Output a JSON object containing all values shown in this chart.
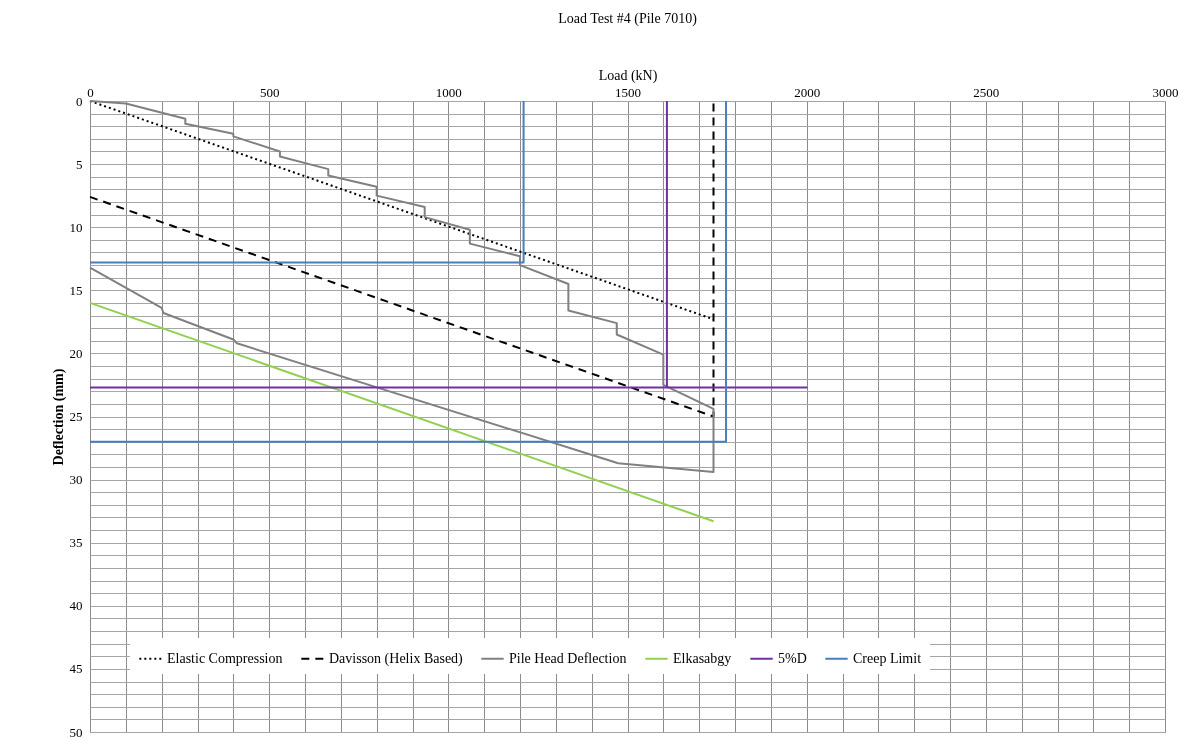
{
  "chart_data": {
    "type": "line",
    "title": "Load Test #4 (Pile 7010)",
    "xlabel": "Load (kN)",
    "ylabel": "Deflection (mm)",
    "xlim": [
      0,
      3000
    ],
    "ylim": [
      50,
      0
    ],
    "xticks": [
      0,
      {
        "value": 100,
        "label": null
      },
      {
        "value": 200,
        "label": null
      },
      {
        "value": 300,
        "label": null
      },
      {
        "value": 400,
        "label": null
      },
      500,
      {
        "value": 600,
        "label": null
      },
      {
        "value": 700,
        "label": null
      },
      {
        "value": 800,
        "label": null
      },
      {
        "value": 900,
        "label": null
      },
      1000,
      {
        "value": 1100,
        "label": null
      },
      {
        "value": 1200,
        "label": null
      },
      {
        "value": 1300,
        "label": null
      },
      {
        "value": 1400,
        "label": null
      },
      1500,
      {
        "value": 1600,
        "label": null
      },
      {
        "value": 1700,
        "label": null
      },
      {
        "value": 1800,
        "label": null
      },
      {
        "value": 1900,
        "label": null
      },
      2000,
      {
        "value": 2100,
        "label": null
      },
      {
        "value": 2200,
        "label": null
      },
      {
        "value": 2300,
        "label": null
      },
      {
        "value": 2400,
        "label": null
      },
      2500,
      {
        "value": 2600,
        "label": null
      },
      {
        "value": 2700,
        "label": null
      },
      {
        "value": 2800,
        "label": null
      },
      {
        "value": 2900,
        "label": null
      },
      3000
    ],
    "yticks": [
      0,
      {
        "value": 1,
        "label": null
      },
      {
        "value": 2,
        "label": null
      },
      {
        "value": 3,
        "label": null
      },
      {
        "value": 4,
        "label": null
      },
      5,
      {
        "value": 6,
        "label": null
      },
      {
        "value": 7,
        "label": null
      },
      {
        "value": 8,
        "label": null
      },
      {
        "value": 9,
        "label": null
      },
      10,
      {
        "value": 11,
        "label": null
      },
      {
        "value": 12,
        "label": null
      },
      {
        "value": 13,
        "label": null
      },
      {
        "value": 14,
        "label": null
      },
      15,
      {
        "value": 16,
        "label": null
      },
      {
        "value": 17,
        "label": null
      },
      {
        "value": 18,
        "label": null
      },
      {
        "value": 19,
        "label": null
      },
      20,
      {
        "value": 21,
        "label": null
      },
      {
        "value": 22,
        "label": null
      },
      {
        "value": 23,
        "label": null
      },
      {
        "value": 24,
        "label": null
      },
      25,
      {
        "value": 26,
        "label": null
      },
      {
        "value": 27,
        "label": null
      },
      {
        "value": 28,
        "label": null
      },
      {
        "value": 29,
        "label": null
      },
      30,
      {
        "value": 31,
        "label": null
      },
      {
        "value": 32,
        "label": null
      },
      {
        "value": 33,
        "label": null
      },
      {
        "value": 34,
        "label": null
      },
      35,
      {
        "value": 36,
        "label": null
      },
      {
        "value": 37,
        "label": null
      },
      {
        "value": 38,
        "label": null
      },
      {
        "value": 39,
        "label": null
      },
      40,
      {
        "value": 41,
        "label": null
      },
      {
        "value": 42,
        "label": null
      },
      {
        "value": 43,
        "label": null
      },
      {
        "value": 44,
        "label": null
      },
      45,
      {
        "value": 46,
        "label": null
      },
      {
        "value": 47,
        "label": null
      },
      {
        "value": 48,
        "label": null
      },
      {
        "value": 49,
        "label": null
      },
      50
    ],
    "grid": true,
    "legend": "bottom",
    "series": [
      {
        "name": "Elastic Compression",
        "color": "#000000",
        "line_style": "dotted",
        "x": [
          0,
          1740
        ],
        "values": [
          0,
          17.3
        ]
      },
      {
        "name": "Davisson (Helix Based)",
        "color": "#000000",
        "line_style": "dashed",
        "x": [
          0,
          1740,
          1740
        ],
        "values": [
          7.6,
          25.0,
          0
        ]
      },
      {
        "name": "Pile Head Deflection",
        "color": "#808080",
        "line_style": "solid",
        "x": [
          0,
          100,
          266,
          266,
          400,
          400,
          530,
          530,
          665,
          665,
          800,
          800,
          934,
          934,
          1060,
          1060,
          1200,
          1200,
          1335,
          1335,
          1470,
          1470,
          1600,
          1600,
          1740,
          1740,
          1474,
          410,
          400,
          205,
          200,
          0
        ],
        "values": [
          0,
          0.2,
          1.4,
          1.8,
          2.6,
          2.8,
          4.0,
          4.4,
          5.4,
          5.9,
          6.8,
          7.5,
          8.4,
          9.2,
          10.2,
          11.3,
          12.3,
          13.0,
          14.5,
          16.6,
          17.6,
          18.5,
          20.1,
          22.5,
          24.4,
          29.4,
          28.7,
          19.2,
          18.9,
          16.8,
          16.4,
          13.2
        ]
      },
      {
        "name": "Elkasabgy",
        "color": "#92d050",
        "line_style": "solid",
        "x": [
          0,
          1740
        ],
        "values": [
          16.0,
          33.3
        ]
      },
      {
        "name": "5%D",
        "color": "#7030a0",
        "line_style": "solid",
        "x": [
          0,
          2000,
          1610,
          1610
        ],
        "values": [
          22.7,
          22.7,
          22.7,
          0
        ]
      },
      {
        "name": "Creep Limit",
        "color": "#4a7ebb",
        "line_style": "solid",
        "x": [
          1210,
          1210,
          0,
          null,
          0,
          1775,
          1775
        ],
        "values": [
          0,
          12.8,
          12.8,
          null,
          27.0,
          27.0,
          0
        ]
      }
    ]
  }
}
